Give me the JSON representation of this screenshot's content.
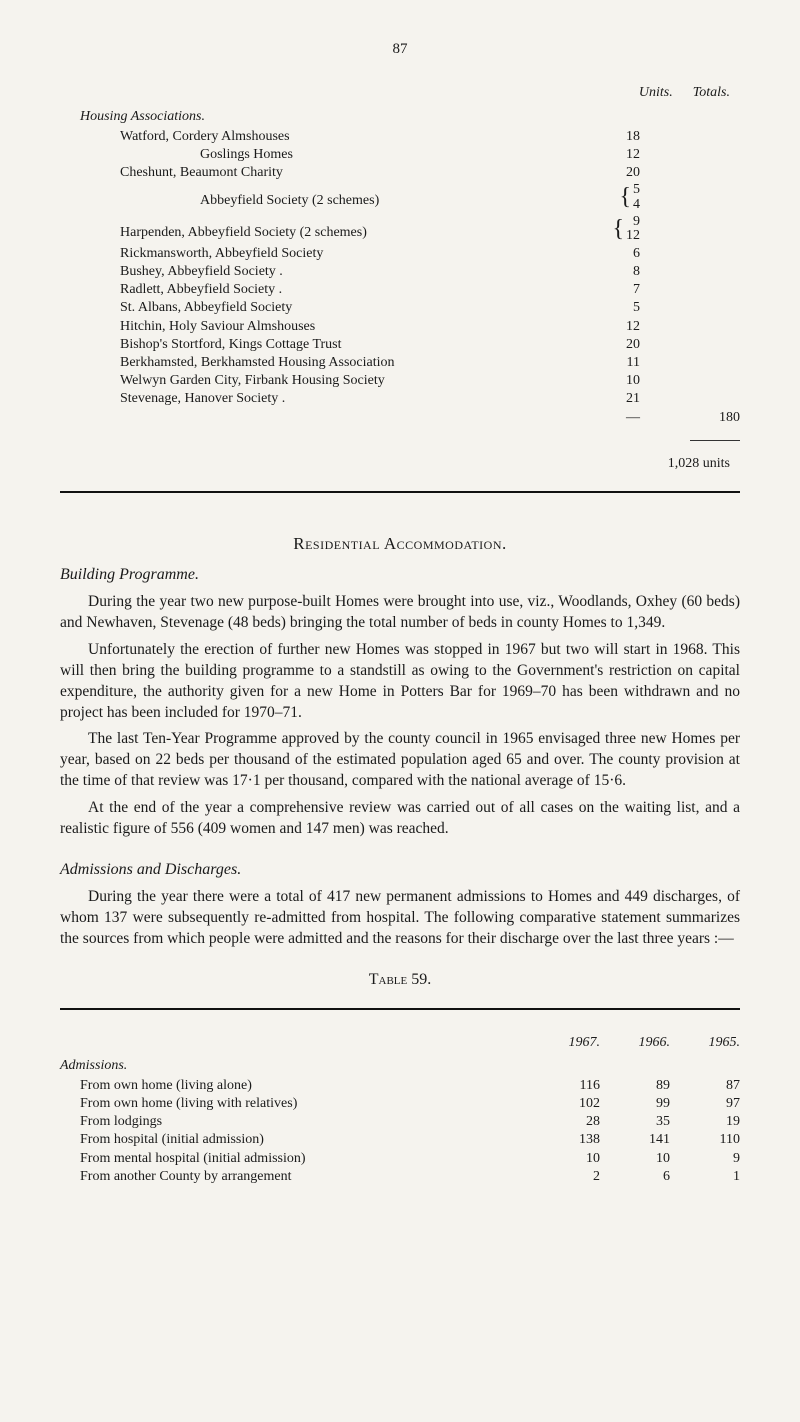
{
  "page_number": "87",
  "header": {
    "units": "Units.",
    "totals": "Totals."
  },
  "housing_section_label": "Housing Associations.",
  "housing": [
    {
      "label": "Watford, Cordery Almshouses",
      "units": "18"
    },
    {
      "label": "Goslings Homes",
      "units": "12",
      "indent": true
    },
    {
      "label": "Cheshunt, Beaumont Charity",
      "units": "20"
    },
    {
      "label": "Abbeyfield Society (2 schemes)",
      "brace": [
        "5",
        "4"
      ],
      "indent": true
    },
    {
      "label": "Harpenden, Abbeyfield Society (2 schemes)",
      "brace": [
        "9",
        "12"
      ]
    },
    {
      "label": "Rickmansworth, Abbeyfield Society",
      "units": "6"
    },
    {
      "label": "Bushey, Abbeyfield Society .",
      "units": "8"
    },
    {
      "label": "Radlett, Abbeyfield Society .",
      "units": "7"
    },
    {
      "label": "St. Albans, Abbeyfield Society",
      "units": "5"
    },
    {
      "label": "Hitchin, Holy Saviour Almshouses",
      "units": "12"
    },
    {
      "label": "Bishop's Stortford, Kings Cottage Trust",
      "units": "20"
    },
    {
      "label": "Berkhamsted, Berkhamsted Housing Association",
      "units": "11"
    },
    {
      "label": "Welwyn Garden City, Firbank Housing Society",
      "units": "10"
    },
    {
      "label": "Stevenage, Hanover Society .",
      "units": "21"
    }
  ],
  "subtotal": "180",
  "grand_total": "1,028 units",
  "heading1": "Residential Accommodation.",
  "subheading_building": "Building Programme.",
  "para1": "During the year two new purpose-built Homes were brought into use, viz., Woodlands, Oxhey (60 beds) and Newhaven, Stevenage (48 beds) bringing the total number of beds in county Homes to 1,349.",
  "para2": "Unfortunately the erection of further new Homes was stopped in 1967 but two will start in 1968. This will then bring the building programme to a standstill as owing to the Government's restriction on capital expenditure, the authority given for a new Home in Potters Bar for 1969–70 has been with­drawn and no project has been included for 1970–71.",
  "para3": "The last Ten-Year Programme approved by the county council in 1965 envisaged three new Homes per year, based on 22 beds per thousand of the estimated population aged 65 and over. The county provision at the time of that review was 17·1 per thousand, compared with the national average of 15·6.",
  "para4": "At the end of the year a comprehensive review was carried out of all cases on the waiting list, and a realistic figure of 556 (409 women and 147 men) was reached.",
  "subheading_adm": "Admissions and Discharges.",
  "para5": "During the year there were a total of 417 new permanent admissions to Homes and 449 discharges, of whom 137 were subsequently re-admitted from hospital. The following comparative statement summarizes the sources from which people were admitted and the reasons for their discharge over the last three years :—",
  "table_label": "Table 59.",
  "adm_years": [
    "1967.",
    "1966.",
    "1965."
  ],
  "adm_section": "Admissions.",
  "adm_rows": [
    {
      "label": "From own home (living alone)",
      "vals": [
        "116",
        "89",
        "87"
      ]
    },
    {
      "label": "From own home (living with relatives)",
      "vals": [
        "102",
        "99",
        "97"
      ]
    },
    {
      "label": "From lodgings",
      "vals": [
        "28",
        "35",
        "19"
      ]
    },
    {
      "label": "From hospital (initial admission)",
      "vals": [
        "138",
        "141",
        "110"
      ]
    },
    {
      "label": "From mental hospital (initial admission)",
      "vals": [
        "10",
        "10",
        "9"
      ]
    },
    {
      "label": "From another County by arrangement",
      "vals": [
        "2",
        "6",
        "1"
      ]
    }
  ]
}
